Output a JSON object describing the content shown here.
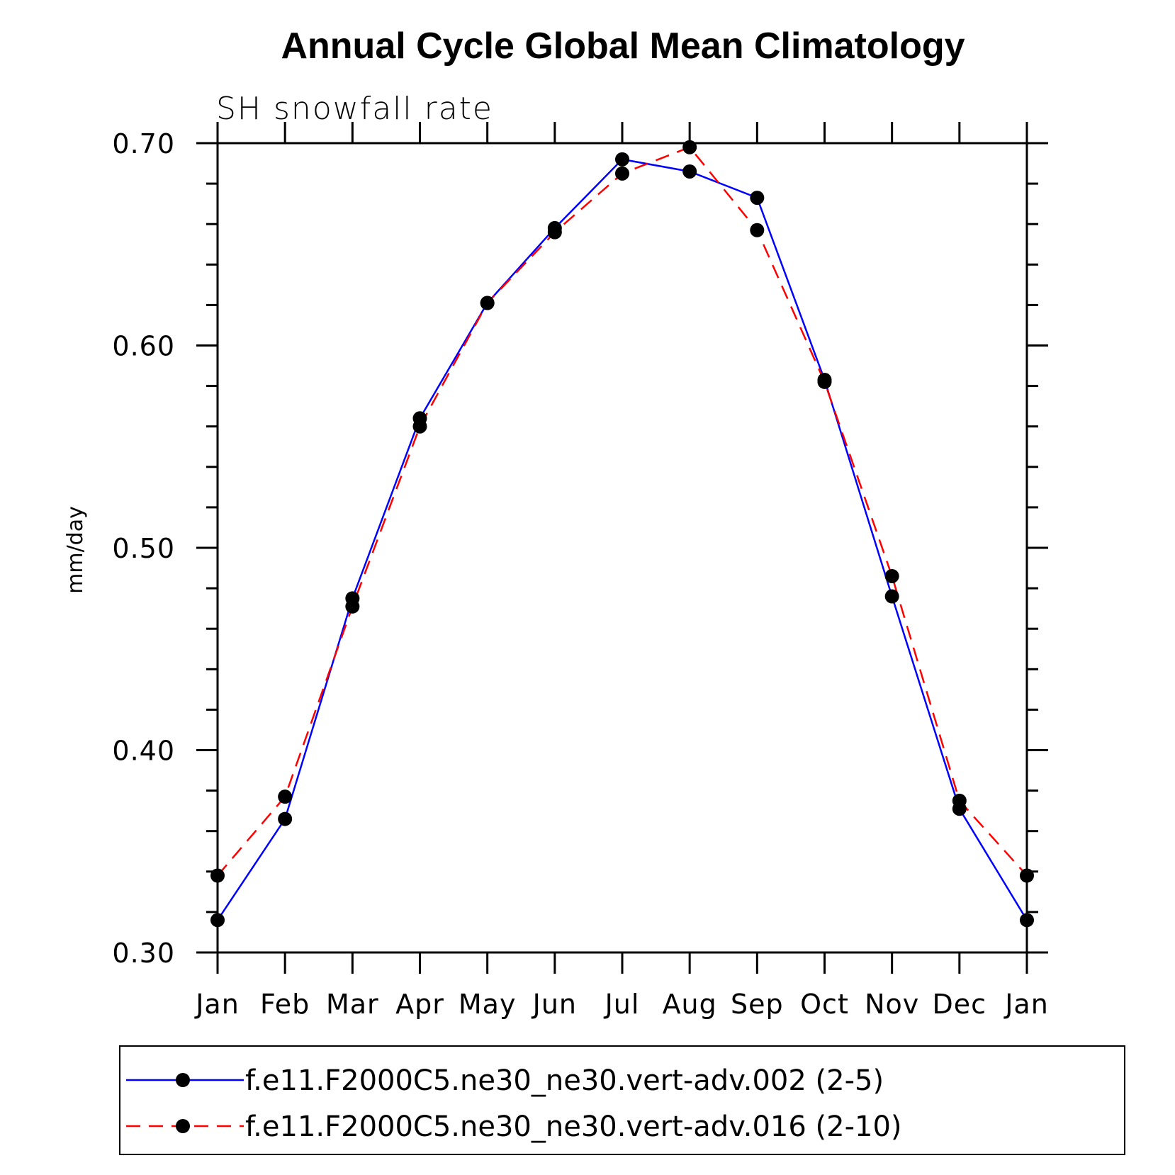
{
  "chart_data": {
    "type": "line",
    "title": "Annual Cycle Global Mean Climatology",
    "subtitle": "SH snowfall rate",
    "xlabel": "",
    "ylabel": "mm/day",
    "categories": [
      "Jan",
      "Feb",
      "Mar",
      "Apr",
      "May",
      "Jun",
      "Jul",
      "Aug",
      "Sep",
      "Oct",
      "Nov",
      "Dec",
      "Jan"
    ],
    "ylim": [
      0.3,
      0.7
    ],
    "yticks": [
      "0.30",
      "0.40",
      "0.50",
      "0.60",
      "0.70"
    ],
    "grid": false,
    "legend_position": "bottom",
    "series": [
      {
        "name": "f.e11.F2000C5.ne30_ne30.vert-adv.002 (2-5)",
        "color": "#0000ff",
        "line_style": "solid",
        "marker": "filled-circle",
        "values": [
          0.316,
          0.366,
          0.475,
          0.564,
          0.621,
          0.658,
          0.692,
          0.686,
          0.673,
          0.583,
          0.476,
          0.371,
          0.316
        ]
      },
      {
        "name": "f.e11.F2000C5.ne30_ne30.vert-adv.016 (2-10)",
        "color": "#ff0000",
        "line_style": "dashed",
        "marker": "filled-circle",
        "values": [
          0.338,
          0.377,
          0.471,
          0.56,
          0.621,
          0.656,
          0.685,
          0.698,
          0.657,
          0.582,
          0.486,
          0.375,
          0.338
        ]
      }
    ]
  }
}
